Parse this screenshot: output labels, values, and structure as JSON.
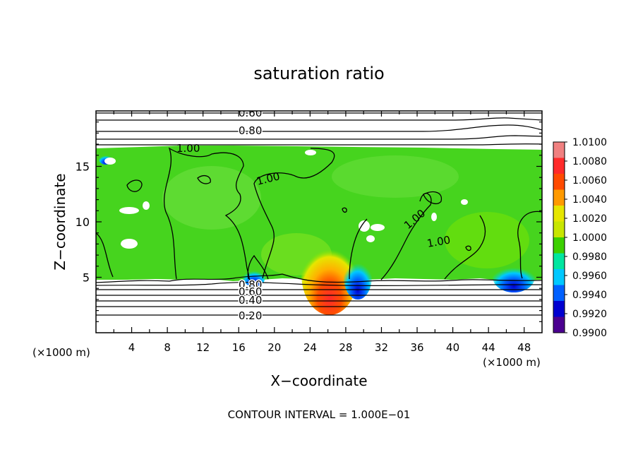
{
  "chart_data": {
    "type": "heatmap",
    "title": "saturation ratio",
    "xlabel": "X−coordinate",
    "ylabel": "Z−coordinate",
    "x_unit_left": "(×1000 m)",
    "x_unit_right": "(×1000 m)",
    "xlim": [
      0,
      50
    ],
    "ylim": [
      0,
      20
    ],
    "x_ticks": [
      "4",
      "8",
      "12",
      "16",
      "20",
      "24",
      "28",
      "32",
      "36",
      "40",
      "44",
      "48"
    ],
    "y_ticks": [
      "5",
      "10",
      "15"
    ],
    "colorbar": {
      "ticks": [
        "1.0100",
        "1.0080",
        "1.0060",
        "1.0040",
        "1.0020",
        "1.0000",
        "0.9980",
        "0.9960",
        "0.9940",
        "0.9920",
        "0.9900"
      ],
      "colors": [
        "#f08080",
        "#ff2a2a",
        "#ff4a00",
        "#ff9a00",
        "#e6e600",
        "#c8e600",
        "#3cd000",
        "#00e6a0",
        "#00c8ff",
        "#0060ff",
        "#0000d0",
        "#4b0090"
      ]
    },
    "contour_labels": [
      "0.60",
      "0.80",
      "1.00",
      "1.00",
      "1.00",
      "1.00",
      "0.80",
      "0.60",
      "0.40",
      "0.20"
    ],
    "footnote": "CONTOUR INTERVAL = 1.000E−01",
    "grid": false,
    "legend_position": "right"
  }
}
